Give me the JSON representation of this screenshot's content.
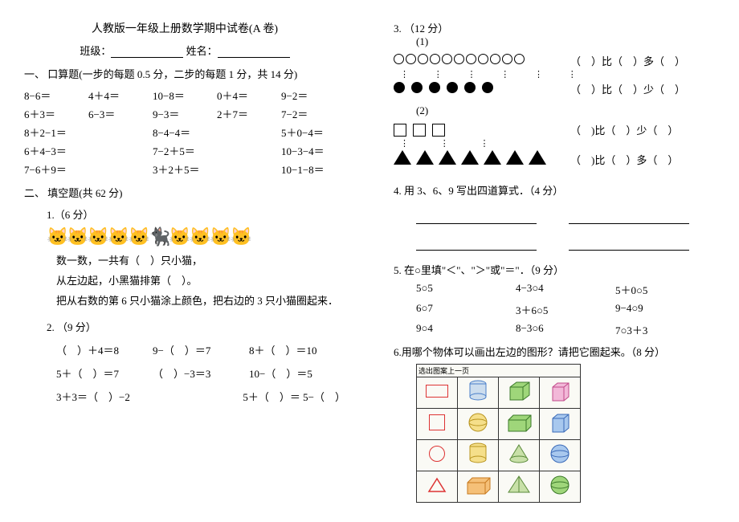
{
  "doc": {
    "title": "人教版一年级上册数学期中试卷(A 卷)",
    "class_label": "班级：",
    "name_label": "姓名：",
    "section1_title": "一、 口算题(一步的每题 0.5 分，二步的每题 1 分，共 14 分)",
    "calc_rows": [
      [
        "8−6＝",
        "4＋4＝",
        "10−8＝",
        "0＋4＝",
        "9−2＝"
      ],
      [
        "6＋3＝",
        "6−3＝",
        "9−3＝",
        "2＋7＝",
        "7−2＝"
      ],
      [
        "8＋2−1＝",
        "",
        "8−4−4＝",
        "",
        "5＋0−4＝"
      ],
      [
        "6＋4−3＝",
        "",
        "7−2＋5＝",
        "",
        "10−3−4＝"
      ],
      [
        "7−6＋9＝",
        "",
        "3＋2＋5＝",
        "",
        "10−1−8＝"
      ]
    ],
    "section2_title": "二、 填空题(共 62 分)",
    "q1_label": "1.（6 分）",
    "q1_line1": "数一数，一共有（　）只小猫，",
    "q1_line2": "从左边起，小黑猫排第（　）。",
    "q1_line3": "把从右数的第 6 只小猫涂上颜色，把右边的 3 只小猫圈起来．",
    "q2_label": "2. （9 分）",
    "q2_rows": [
      [
        "（　）＋4＝8",
        "9−（　）＝7",
        "8＋（　）＝10"
      ],
      [
        "5＋（　）＝7",
        "（　）−3＝3",
        "10−（　）＝5"
      ],
      [
        "3＋3＝（　）−2",
        "",
        "5＋（　）＝ 5−（　）"
      ]
    ],
    "q3_label": "3. （12 分）",
    "q3_sub1": "(1)",
    "q3_sub2": "(2)",
    "q3_text_more": "（　）比（　）多（　）",
    "q3_text_less": "（　）比（　）少（　）",
    "q3_text_less2": "（　)比（　）少（　）",
    "q3_text_more2": "（　)比（　）多（　）",
    "counts": {
      "hollow_circles": 11,
      "solid_circles": 6,
      "hollow_squares": 3,
      "solid_triangles": 7
    },
    "q4_label": "4. 用 3、6、9 写出四道算式．（4 分）",
    "q5_label": "5. 在○里填\"＜\"、\"＞\"或\"＝\"．（9 分）",
    "q5_rows": [
      [
        "5○5",
        "4−3○4",
        "5＋0○5"
      ],
      [
        "6○7",
        "3＋6○5",
        "9−4○9"
      ],
      [
        "9○4",
        "8−3○6",
        "7○3＋3"
      ]
    ],
    "q6_label": "6.用哪个物体可以画出左边的图形？请把它圈起来。（8 分）",
    "shapes_header": "选出图案上一页",
    "colors": {
      "red": "#d94426",
      "green": "#6fb64a",
      "blue": "#4a7fc9",
      "pink": "#e37bb8",
      "yellow": "#e8c23a",
      "orange": "#e88a2e",
      "gray": "#a8a8a8"
    }
  }
}
